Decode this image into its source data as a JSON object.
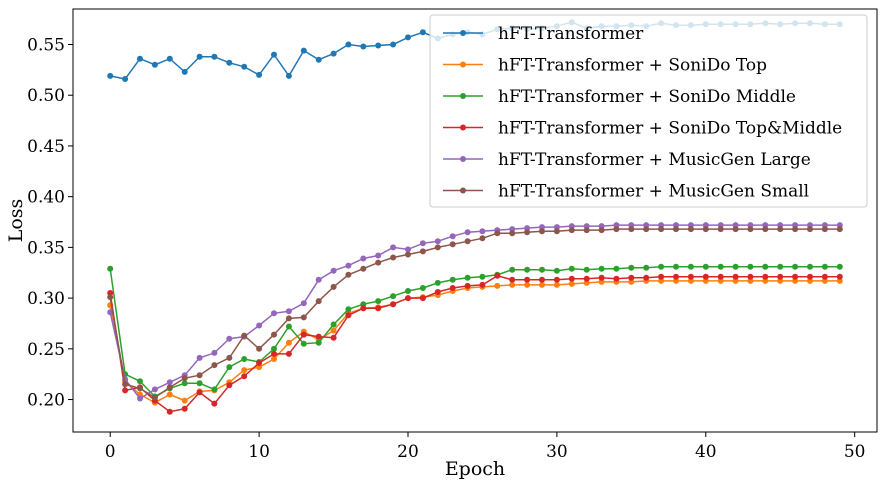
{
  "chart_data": {
    "type": "line",
    "title": "",
    "xlabel": "Epoch",
    "ylabel": "Loss",
    "xlim": [
      -2.5,
      51.5
    ],
    "ylim": [
      0.168,
      0.585
    ],
    "xticks": [
      0,
      10,
      20,
      30,
      40,
      50
    ],
    "yticks": [
      0.2,
      0.25,
      0.3,
      0.35,
      0.4,
      0.45,
      0.5,
      0.55
    ],
    "ytick_labels": [
      "0.20",
      "0.25",
      "0.30",
      "0.35",
      "0.40",
      "0.45",
      "0.50",
      "0.55"
    ],
    "grid": false,
    "legend_position": "top-right",
    "x": [
      0,
      1,
      2,
      3,
      4,
      5,
      6,
      7,
      8,
      9,
      10,
      11,
      12,
      13,
      14,
      15,
      16,
      17,
      18,
      19,
      20,
      21,
      22,
      23,
      24,
      25,
      26,
      27,
      28,
      29,
      30,
      31,
      32,
      33,
      34,
      35,
      36,
      37,
      38,
      39,
      40,
      41,
      42,
      43,
      44,
      45,
      46,
      47,
      48,
      49
    ],
    "series": [
      {
        "name": "hFT-Transformer",
        "color": "#1f77b4",
        "values": [
          0.519,
          0.516,
          0.536,
          0.53,
          0.536,
          0.523,
          0.538,
          0.538,
          0.532,
          0.528,
          0.52,
          0.54,
          0.519,
          0.544,
          0.535,
          0.541,
          0.55,
          0.548,
          0.549,
          0.55,
          0.557,
          0.562,
          0.556,
          0.56,
          0.562,
          0.56,
          0.565,
          0.566,
          0.565,
          0.566,
          0.568,
          0.572,
          0.566,
          0.568,
          0.568,
          0.569,
          0.568,
          0.571,
          0.569,
          0.569,
          0.57,
          0.57,
          0.57,
          0.57,
          0.571,
          0.57,
          0.571,
          0.571,
          0.57,
          0.57
        ]
      },
      {
        "name": "hFT-Transformer + SoniDo Top",
        "color": "#ff7f0e",
        "values": [
          0.293,
          0.218,
          0.205,
          0.197,
          0.205,
          0.199,
          0.208,
          0.209,
          0.217,
          0.229,
          0.232,
          0.24,
          0.256,
          0.267,
          0.259,
          0.268,
          0.285,
          0.29,
          0.291,
          0.294,
          0.3,
          0.301,
          0.303,
          0.307,
          0.31,
          0.311,
          0.312,
          0.313,
          0.313,
          0.313,
          0.313,
          0.314,
          0.315,
          0.316,
          0.316,
          0.316,
          0.317,
          0.317,
          0.317,
          0.317,
          0.317,
          0.317,
          0.317,
          0.317,
          0.317,
          0.317,
          0.317,
          0.317,
          0.317,
          0.317
        ]
      },
      {
        "name": "hFT-Transformer + SoniDo Middle",
        "color": "#2ca02c",
        "values": [
          0.329,
          0.225,
          0.218,
          0.203,
          0.211,
          0.216,
          0.216,
          0.21,
          0.232,
          0.24,
          0.237,
          0.25,
          0.272,
          0.255,
          0.256,
          0.274,
          0.289,
          0.294,
          0.297,
          0.302,
          0.307,
          0.31,
          0.315,
          0.318,
          0.32,
          0.321,
          0.323,
          0.328,
          0.328,
          0.328,
          0.327,
          0.329,
          0.328,
          0.329,
          0.329,
          0.33,
          0.33,
          0.331,
          0.331,
          0.331,
          0.331,
          0.331,
          0.331,
          0.331,
          0.331,
          0.331,
          0.331,
          0.331,
          0.331,
          0.331
        ]
      },
      {
        "name": "hFT-Transformer + SoniDo Top&Middle",
        "color": "#d62728",
        "values": [
          0.305,
          0.209,
          0.212,
          0.199,
          0.188,
          0.191,
          0.207,
          0.196,
          0.214,
          0.223,
          0.236,
          0.245,
          0.245,
          0.264,
          0.262,
          0.261,
          0.283,
          0.29,
          0.29,
          0.294,
          0.3,
          0.3,
          0.306,
          0.31,
          0.312,
          0.313,
          0.322,
          0.318,
          0.318,
          0.318,
          0.318,
          0.319,
          0.319,
          0.32,
          0.319,
          0.32,
          0.32,
          0.321,
          0.321,
          0.321,
          0.321,
          0.321,
          0.321,
          0.321,
          0.321,
          0.321,
          0.321,
          0.321,
          0.321,
          0.321
        ]
      },
      {
        "name": "hFT-Transformer + MusicGen Large",
        "color": "#9467bd",
        "values": [
          0.286,
          0.22,
          0.201,
          0.21,
          0.217,
          0.224,
          0.241,
          0.246,
          0.26,
          0.262,
          0.273,
          0.285,
          0.287,
          0.295,
          0.318,
          0.327,
          0.332,
          0.339,
          0.342,
          0.35,
          0.348,
          0.354,
          0.356,
          0.361,
          0.365,
          0.366,
          0.367,
          0.368,
          0.369,
          0.37,
          0.37,
          0.371,
          0.371,
          0.371,
          0.372,
          0.372,
          0.372,
          0.372,
          0.372,
          0.372,
          0.372,
          0.372,
          0.372,
          0.372,
          0.372,
          0.372,
          0.372,
          0.372,
          0.372,
          0.372
        ]
      },
      {
        "name": "hFT-Transformer + MusicGen Small",
        "color": "#8c564b",
        "values": [
          0.301,
          0.215,
          0.211,
          0.202,
          0.212,
          0.221,
          0.224,
          0.234,
          0.241,
          0.263,
          0.25,
          0.264,
          0.28,
          0.281,
          0.297,
          0.311,
          0.323,
          0.329,
          0.335,
          0.34,
          0.343,
          0.346,
          0.35,
          0.353,
          0.356,
          0.359,
          0.364,
          0.364,
          0.365,
          0.366,
          0.366,
          0.367,
          0.367,
          0.367,
          0.368,
          0.368,
          0.368,
          0.368,
          0.368,
          0.368,
          0.368,
          0.368,
          0.368,
          0.368,
          0.368,
          0.368,
          0.368,
          0.368,
          0.368,
          0.368
        ]
      }
    ]
  }
}
